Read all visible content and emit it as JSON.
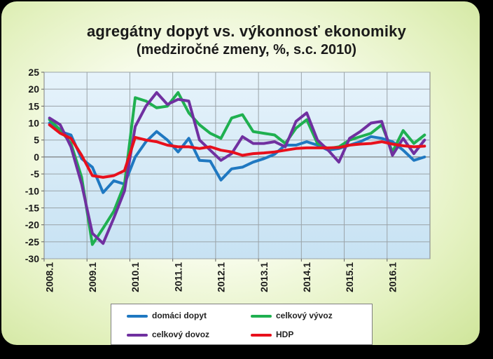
{
  "chart_data": {
    "type": "line",
    "title": "agregátny dopyt vs. výkonnosť ekonomiky",
    "subtitle": "(medziročné zmeny, %,  s.c. 2010)",
    "ylim": [
      -30,
      25
    ],
    "y_ticks": [
      "25",
      "20",
      "15",
      "10",
      "5",
      "0",
      "-5",
      "-10",
      "-15",
      "-20",
      "-25",
      "-30"
    ],
    "x_tick_labels": [
      "2008.1",
      "2009.1",
      "2010.1",
      "2011.1",
      "2012.1",
      "2013.1",
      "2014.1",
      "2015.1",
      "2016.1"
    ],
    "x": [
      "2008.1",
      "2008.2",
      "2008.3",
      "2008.4",
      "2009.1",
      "2009.2",
      "2009.3",
      "2009.4",
      "2010.1",
      "2010.2",
      "2010.3",
      "2010.4",
      "2011.1",
      "2011.2",
      "2011.3",
      "2011.4",
      "2012.1",
      "2012.2",
      "2012.3",
      "2012.4",
      "2013.1",
      "2013.2",
      "2013.3",
      "2013.4",
      "2014.1",
      "2014.2",
      "2014.3",
      "2014.4",
      "2015.1",
      "2015.2",
      "2015.3",
      "2015.4",
      "2016.1",
      "2016.2",
      "2016.3",
      "2016.4"
    ],
    "grid": true,
    "legend_position": "bottom",
    "series": [
      {
        "name": "domáci dopyt",
        "color": "#1f78c1",
        "values": [
          10.0,
          7.5,
          6.5,
          -0.5,
          -3.0,
          -10.5,
          -7.0,
          -8.0,
          0.0,
          4.5,
          7.5,
          5.0,
          1.5,
          5.5,
          -1.0,
          -1.2,
          -6.8,
          -3.5,
          -3.0,
          -1.5,
          -0.5,
          0.8,
          3.5,
          3.5,
          4.5,
          3.5,
          2.0,
          2.5,
          3.5,
          4.5,
          6.0,
          5.5,
          4.5,
          2.0,
          -1.0,
          0.0
        ]
      },
      {
        "name": "celkový vývoz",
        "color": "#1fb050",
        "values": [
          11.0,
          8.0,
          4.0,
          -6.0,
          -25.8,
          -21.0,
          -16.0,
          -8.0,
          17.5,
          16.5,
          14.5,
          15.0,
          19.0,
          13.0,
          9.5,
          7.0,
          5.5,
          11.5,
          12.5,
          7.5,
          7.0,
          6.5,
          4.0,
          8.5,
          11.0,
          4.0,
          2.5,
          3.0,
          5.0,
          6.0,
          7.0,
          9.5,
          1.5,
          7.8,
          4.0,
          6.5
        ]
      },
      {
        "name": "celkový dovoz",
        "color": "#7030a0",
        "values": [
          11.5,
          9.5,
          3.0,
          -8.0,
          -22.5,
          -25.5,
          -18.0,
          -10.0,
          9.0,
          15.0,
          19.0,
          15.5,
          17.0,
          16.5,
          5.0,
          2.0,
          -1.0,
          1.0,
          6.0,
          4.0,
          4.0,
          4.5,
          3.0,
          10.5,
          13.0,
          5.0,
          2.0,
          -1.5,
          5.5,
          7.5,
          10.0,
          10.5,
          0.5,
          5.5,
          1.0,
          5.0
        ]
      },
      {
        "name": "HDP",
        "color": "#e8101c",
        "values": [
          9.5,
          7.0,
          5.5,
          0.5,
          -5.5,
          -6.0,
          -5.5,
          -4.0,
          5.8,
          5.0,
          4.5,
          3.5,
          3.0,
          3.0,
          2.5,
          3.0,
          2.0,
          1.5,
          0.5,
          1.0,
          1.2,
          1.5,
          2.0,
          2.5,
          2.7,
          2.7,
          2.7,
          2.8,
          3.5,
          3.8,
          4.0,
          4.5,
          3.8,
          3.3,
          3.0,
          3.2
        ]
      }
    ]
  }
}
